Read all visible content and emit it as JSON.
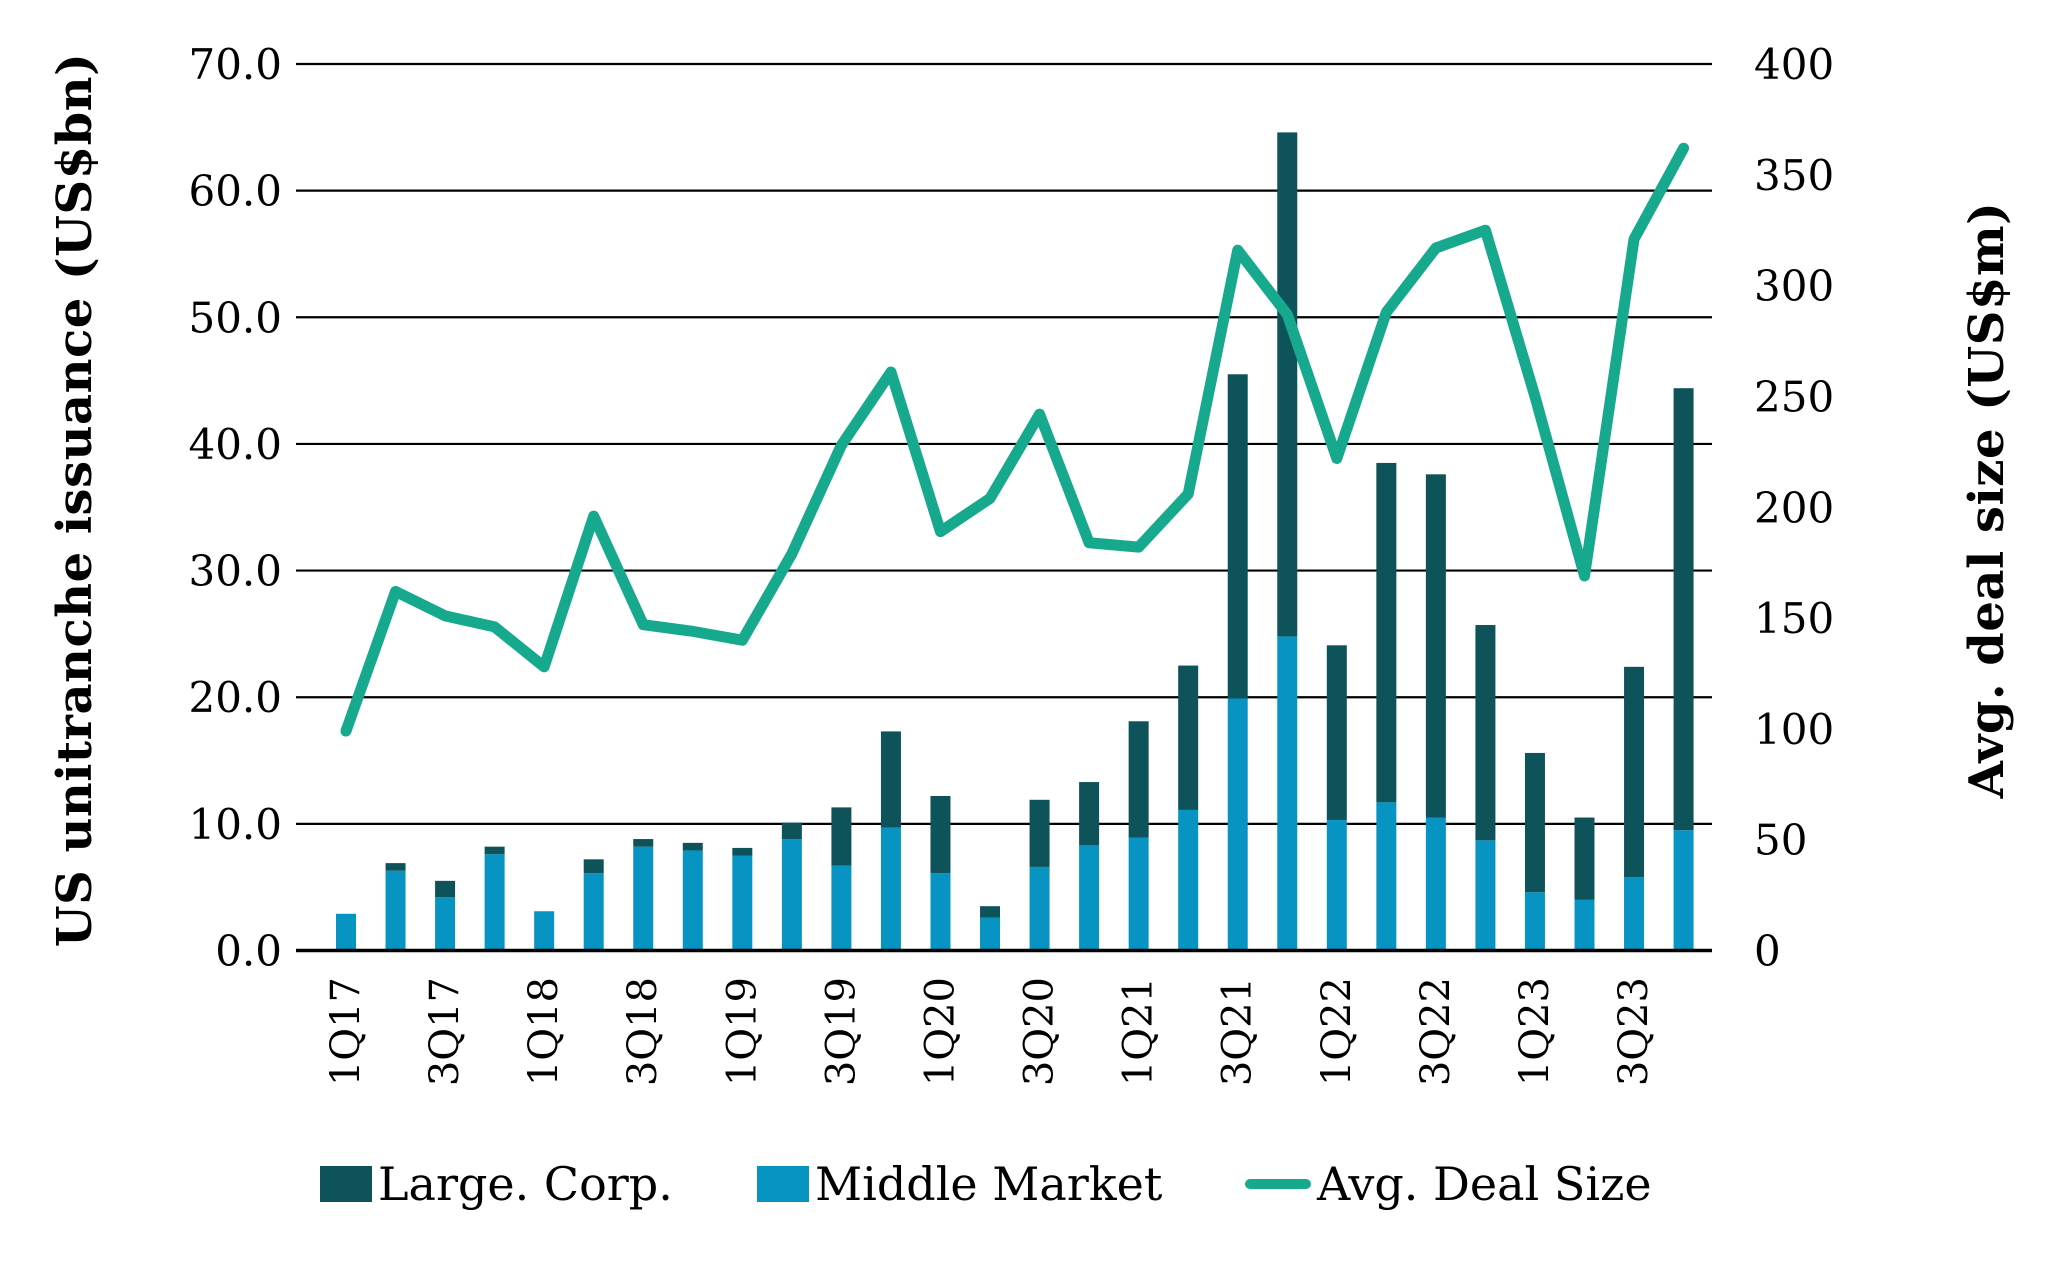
{
  "chart_data": {
    "type": "combo",
    "title": "",
    "categories": [
      "1Q17",
      "2Q17",
      "3Q17",
      "4Q17",
      "1Q18",
      "2Q18",
      "3Q18",
      "4Q18",
      "1Q19",
      "2Q19",
      "3Q19",
      "4Q19",
      "1Q20",
      "2Q20",
      "3Q20",
      "4Q20",
      "1Q21",
      "2Q21",
      "3Q21",
      "4Q21",
      "1Q22",
      "2Q22",
      "3Q22",
      "4Q22",
      "1Q23",
      "2Q23",
      "3Q23",
      "4Q23"
    ],
    "x_tick_labels": [
      "1Q17",
      "3Q17",
      "1Q18",
      "3Q18",
      "1Q19",
      "3Q19",
      "1Q20",
      "3Q20",
      "1Q21",
      "3Q21",
      "1Q22",
      "3Q22",
      "1Q23",
      "3Q23"
    ],
    "series": [
      {
        "name": "Large. Corp.",
        "type": "bar",
        "axis": "left",
        "color": "#0e5359",
        "values": [
          0.0,
          0.6,
          1.3,
          0.6,
          0.0,
          1.1,
          0.6,
          0.6,
          0.6,
          1.3,
          4.6,
          7.6,
          6.1,
          0.9,
          5.3,
          5.0,
          9.2,
          11.4,
          25.6,
          39.8,
          13.8,
          26.8,
          27.1,
          17.0,
          11.0,
          6.5,
          16.6,
          34.9
        ]
      },
      {
        "name": "Middle Market",
        "type": "bar",
        "axis": "left",
        "color": "#0894c3",
        "values": [
          2.9,
          6.3,
          4.2,
          7.6,
          3.1,
          6.1,
          8.2,
          7.9,
          7.5,
          8.8,
          6.7,
          9.7,
          6.1,
          2.6,
          6.6,
          8.3,
          8.9,
          11.1,
          19.9,
          24.8,
          10.3,
          11.7,
          10.5,
          8.7,
          4.6,
          4.0,
          5.8,
          9.5
        ]
      },
      {
        "name": "Avg. Deal Size",
        "type": "line",
        "axis": "right",
        "color": "#16a98e",
        "values": [
          99,
          162,
          151,
          146,
          128,
          196,
          147,
          144,
          140,
          179,
          228,
          261,
          189,
          204,
          242,
          184,
          182,
          206,
          316,
          287,
          222,
          288,
          317,
          325,
          250,
          169,
          321,
          362
        ]
      }
    ],
    "left_axis": {
      "label": "US unitranche issuance (US$bn)",
      "min": 0,
      "max": 70,
      "ticks": [
        "70.0",
        "60.0",
        "50.0",
        "40.0",
        "30.0",
        "20.0",
        "10.0",
        "0.0"
      ]
    },
    "right_axis": {
      "label": "Avg. deal size (US$m)",
      "min": 0,
      "max": 400,
      "ticks": [
        "400",
        "350",
        "300",
        "250",
        "200",
        "150",
        "100",
        "50",
        "0"
      ]
    },
    "grid": true,
    "legend_position": "bottom",
    "gridline_color": "#000000",
    "background_color": "#ffffff",
    "stack_order_bottom_to_top": [
      "Middle Market",
      "Large. Corp."
    ]
  }
}
